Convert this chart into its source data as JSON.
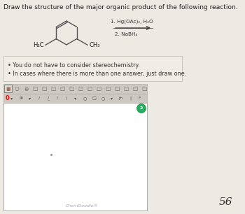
{
  "title": "Draw the structure of the major organic product of the following reaction.",
  "title_fontsize": 6.5,
  "bullet1": "You do not have to consider stereochemistry.",
  "bullet2": "In cases where there is more than one answer, just draw one.",
  "reagent_line1": "1. Hg(OAc)₂, H₂O",
  "reagent_line2": "2. NaBH₄",
  "chemdoodle_text": "ChemDoodle®",
  "page_number": "56",
  "bg_color": "#ede9e3",
  "canvas_bg": "#ffffff",
  "green_circle_color": "#27ae60",
  "bullet_box_bg": "#f0ede7",
  "bullet_box_border": "#c8c4be",
  "bond_color": "#555555",
  "reagent_color": "#333333",
  "text_color": "#222222",
  "toolbar_bg": "#d6d2cc",
  "toolbar_border": "#b0aca6"
}
